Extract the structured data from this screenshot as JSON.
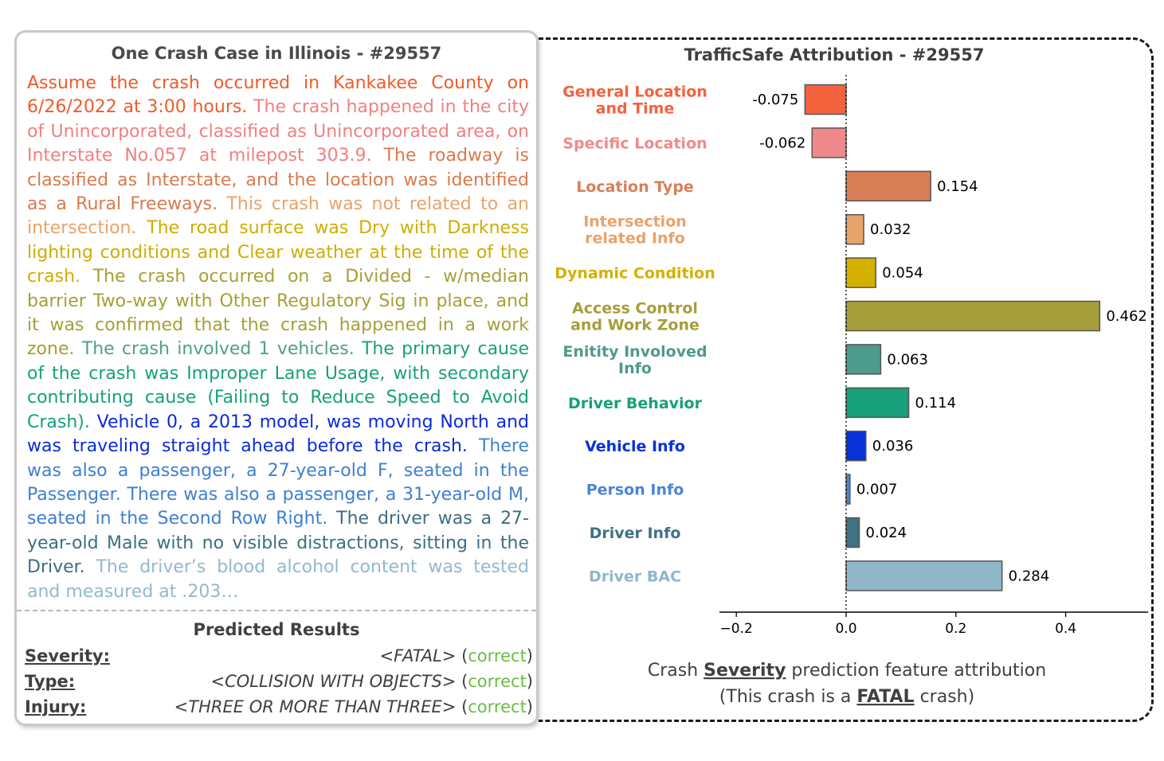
{
  "case_panel": {
    "title": "One Crash Case in Illinois - #29557",
    "segments": [
      {
        "text": "Assume the crash occurred in Kankakee County on 6/26/2022 at 3:00 hours.",
        "color": "#f15a2b"
      },
      {
        "text": "The crash happened in the city of Unincorporated, classified as Unincorporated area, on Interstate No.057 at milepost 303.9.",
        "color": "#f08080"
      },
      {
        "text": "The roadway is classified as Interstate, and the location was identified as a Rural Freeways.",
        "color": "#d97a50"
      },
      {
        "text": "This crash was not related to an intersection.",
        "color": "#e8a36b"
      },
      {
        "text": "The road surface was Dry with Darkness lighting conditions and Clear weather at the time of the crash.",
        "color": "#cfad00"
      },
      {
        "text": "The crash occurred on a Divided - w/median barrier Two-way with Other Regulatory Sig in place, and it was confirmed that the crash happened in a work zone.",
        "color": "#a6a036"
      },
      {
        "text": "The crash involved 1 vehicles.",
        "color": "#4f9f8c"
      },
      {
        "text": "The primary cause of the crash was Improper Lane Usage, with secondary contributing cause (Failing to Reduce Speed to Avoid Crash).",
        "color": "#17a07a"
      },
      {
        "text": "Vehicle 0, a 2013 model, was moving North and was traveling straight ahead before the crash.",
        "color": "#0b2bd6"
      },
      {
        "text": "There was also a passenger, a 27-year-old F, seated in the Passenger. There was also a passenger, a 31-year-old M, seated in the Second Row Right.",
        "color": "#3f7fd0"
      },
      {
        "text": "The driver was a 27-year-old Male with no visible distractions, sitting in the Driver.",
        "color": "#3d6e80"
      },
      {
        "text": "The driver’s blood alcohol content was tested and measured at .203…",
        "color": "#93b9cc"
      }
    ],
    "results_title": "Predicted Results",
    "results": [
      {
        "key": "Severity:",
        "prediction": "<FATAL>",
        "status": "correct"
      },
      {
        "key": "Type:",
        "prediction": "<COLLISION WITH OBJECTS>",
        "status": "correct"
      },
      {
        "key": "Injury:",
        "prediction": "<THREE OR MORE THAN THREE>",
        "status": "correct"
      }
    ]
  },
  "chart_data": {
    "type": "bar",
    "orientation": "horizontal",
    "title": "TrafficSafe Attribution - #29557",
    "categories": [
      "General Location and Time",
      "Specific Location",
      "Location Type",
      "Intersection related Info",
      "Dynamic Condition",
      "Access Control and Work Zone",
      "Enitity Involoved Info",
      "Driver Behavior",
      "Vehicle Info",
      "Person Info",
      "Driver Info",
      "Driver BAC"
    ],
    "category_lines": [
      [
        "General Location",
        "and Time"
      ],
      [
        "Specific Location"
      ],
      [
        "Location Type"
      ],
      [
        "Intersection",
        "related Info"
      ],
      [
        "Dynamic Condition"
      ],
      [
        "Access Control",
        "and Work Zone"
      ],
      [
        "Enitity Involoved",
        "Info"
      ],
      [
        "Driver Behavior"
      ],
      [
        "Vehicle Info"
      ],
      [
        "Person Info"
      ],
      [
        "Driver Info"
      ],
      [
        "Driver BAC"
      ]
    ],
    "values": [
      -0.075,
      -0.062,
      0.154,
      0.032,
      0.054,
      0.462,
      0.063,
      0.114,
      0.036,
      0.007,
      0.024,
      0.284
    ],
    "value_labels": [
      "-0.075",
      "-0.062",
      "0.154",
      "0.032",
      "0.054",
      "0.462",
      "0.063",
      "0.114",
      "0.036",
      "0.007",
      "0.024",
      "0.284"
    ],
    "colors": [
      "#f4623e",
      "#f08a8a",
      "#d97f58",
      "#e8a36b",
      "#d4b000",
      "#a69e3a",
      "#4e9a8c",
      "#17a07a",
      "#0632d8",
      "#4a86d2",
      "#3f7283",
      "#8fb7c9"
    ],
    "xlim": [
      -0.23,
      0.55
    ],
    "xticks": [
      -0.2,
      0.0,
      0.2,
      0.4
    ],
    "xtick_labels": [
      "−0.2",
      "0.0",
      "0.2",
      "0.4"
    ],
    "zero_line": "dotted",
    "caption_line1": [
      "Crash ",
      "Severity",
      " prediction feature attribution"
    ],
    "caption_line2": [
      "(This crash is a ",
      "FATAL",
      " crash)"
    ]
  }
}
